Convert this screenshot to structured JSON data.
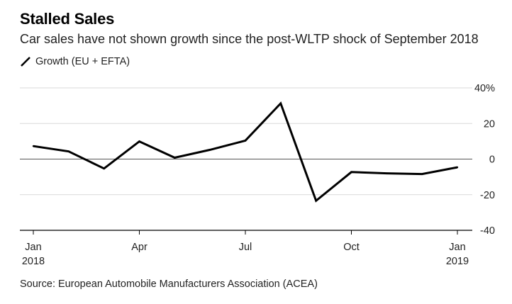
{
  "title": "Stalled Sales",
  "subtitle": "Car sales have not shown growth since the post-WLTP shock of September 2018",
  "legend_label": "Growth (EU + EFTA)",
  "source": "Source: European Automobile Manufacturers Association (ACEA)",
  "chart_data": {
    "type": "line",
    "title": "Stalled Sales",
    "xlabel": "",
    "ylabel": "",
    "x": [
      "2018-01",
      "2018-02",
      "2018-03",
      "2018-04",
      "2018-05",
      "2018-06",
      "2018-07",
      "2018-08",
      "2018-09",
      "2018-10",
      "2018-11",
      "2018-12",
      "2019-01"
    ],
    "series": [
      {
        "name": "Growth (EU + EFTA)",
        "values": [
          7.3,
          4.3,
          -5.3,
          9.9,
          0.8,
          5.2,
          10.4,
          31.3,
          -23.4,
          -7.3,
          -8.0,
          -8.4,
          -4.6
        ],
        "color": "#000000"
      }
    ],
    "ylim": [
      -40,
      40
    ],
    "y_ticks": [
      40,
      20,
      0,
      -20,
      -40
    ],
    "y_tick_labels": [
      "40%",
      "20",
      "0",
      "-20",
      "-40"
    ],
    "x_ticks": [
      {
        "index": 0,
        "label": "Jan",
        "sublabel": "2018"
      },
      {
        "index": 3,
        "label": "Apr",
        "sublabel": ""
      },
      {
        "index": 6,
        "label": "Jul",
        "sublabel": ""
      },
      {
        "index": 9,
        "label": "Oct",
        "sublabel": ""
      },
      {
        "index": 12,
        "label": "Jan",
        "sublabel": "2019"
      }
    ],
    "grid": true,
    "legend_position": "top-left",
    "gridline_color": "#d9d9d9",
    "zero_line_color": "#555555"
  }
}
